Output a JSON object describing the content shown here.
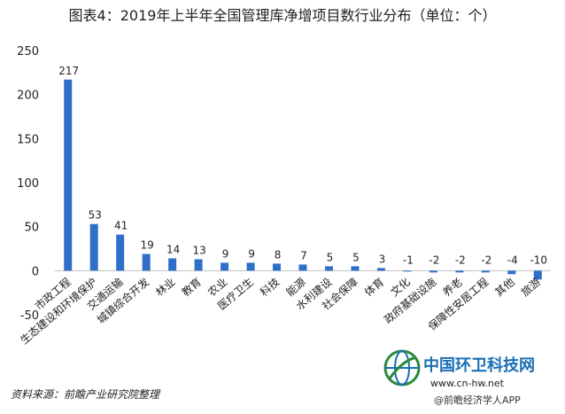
{
  "chart_data": {
    "type": "bar",
    "title": "图表4：2019年上半年全国管理库净增项目数行业分布（单位：个）",
    "categories": [
      "市政工程",
      "生态建设和环境保护",
      "交通运输",
      "城镇综合开发",
      "林业",
      "教育",
      "农业",
      "医疗卫生",
      "科技",
      "能源",
      "水利建设",
      "社会保障",
      "体育",
      "文化",
      "政府基础设施",
      "养老",
      "保障性安居工程",
      "其他",
      "旅游"
    ],
    "values": [
      217,
      53,
      41,
      19,
      14,
      13,
      9,
      9,
      8,
      7,
      5,
      5,
      3,
      -1,
      -2,
      -2,
      -2,
      -4,
      -10
    ],
    "yticks": [
      250,
      200,
      150,
      100,
      50,
      0,
      -50
    ],
    "ylim": [
      -50,
      250
    ],
    "bar_color": "#2f6fc9",
    "grid": false,
    "legend": "none"
  },
  "source": "资料来源：前瞻产业研究院整理",
  "watermark": {
    "logo": "中国环卫科技网",
    "url": "www.cn-hw.net",
    "app": "@前瞻经济学人APP"
  }
}
